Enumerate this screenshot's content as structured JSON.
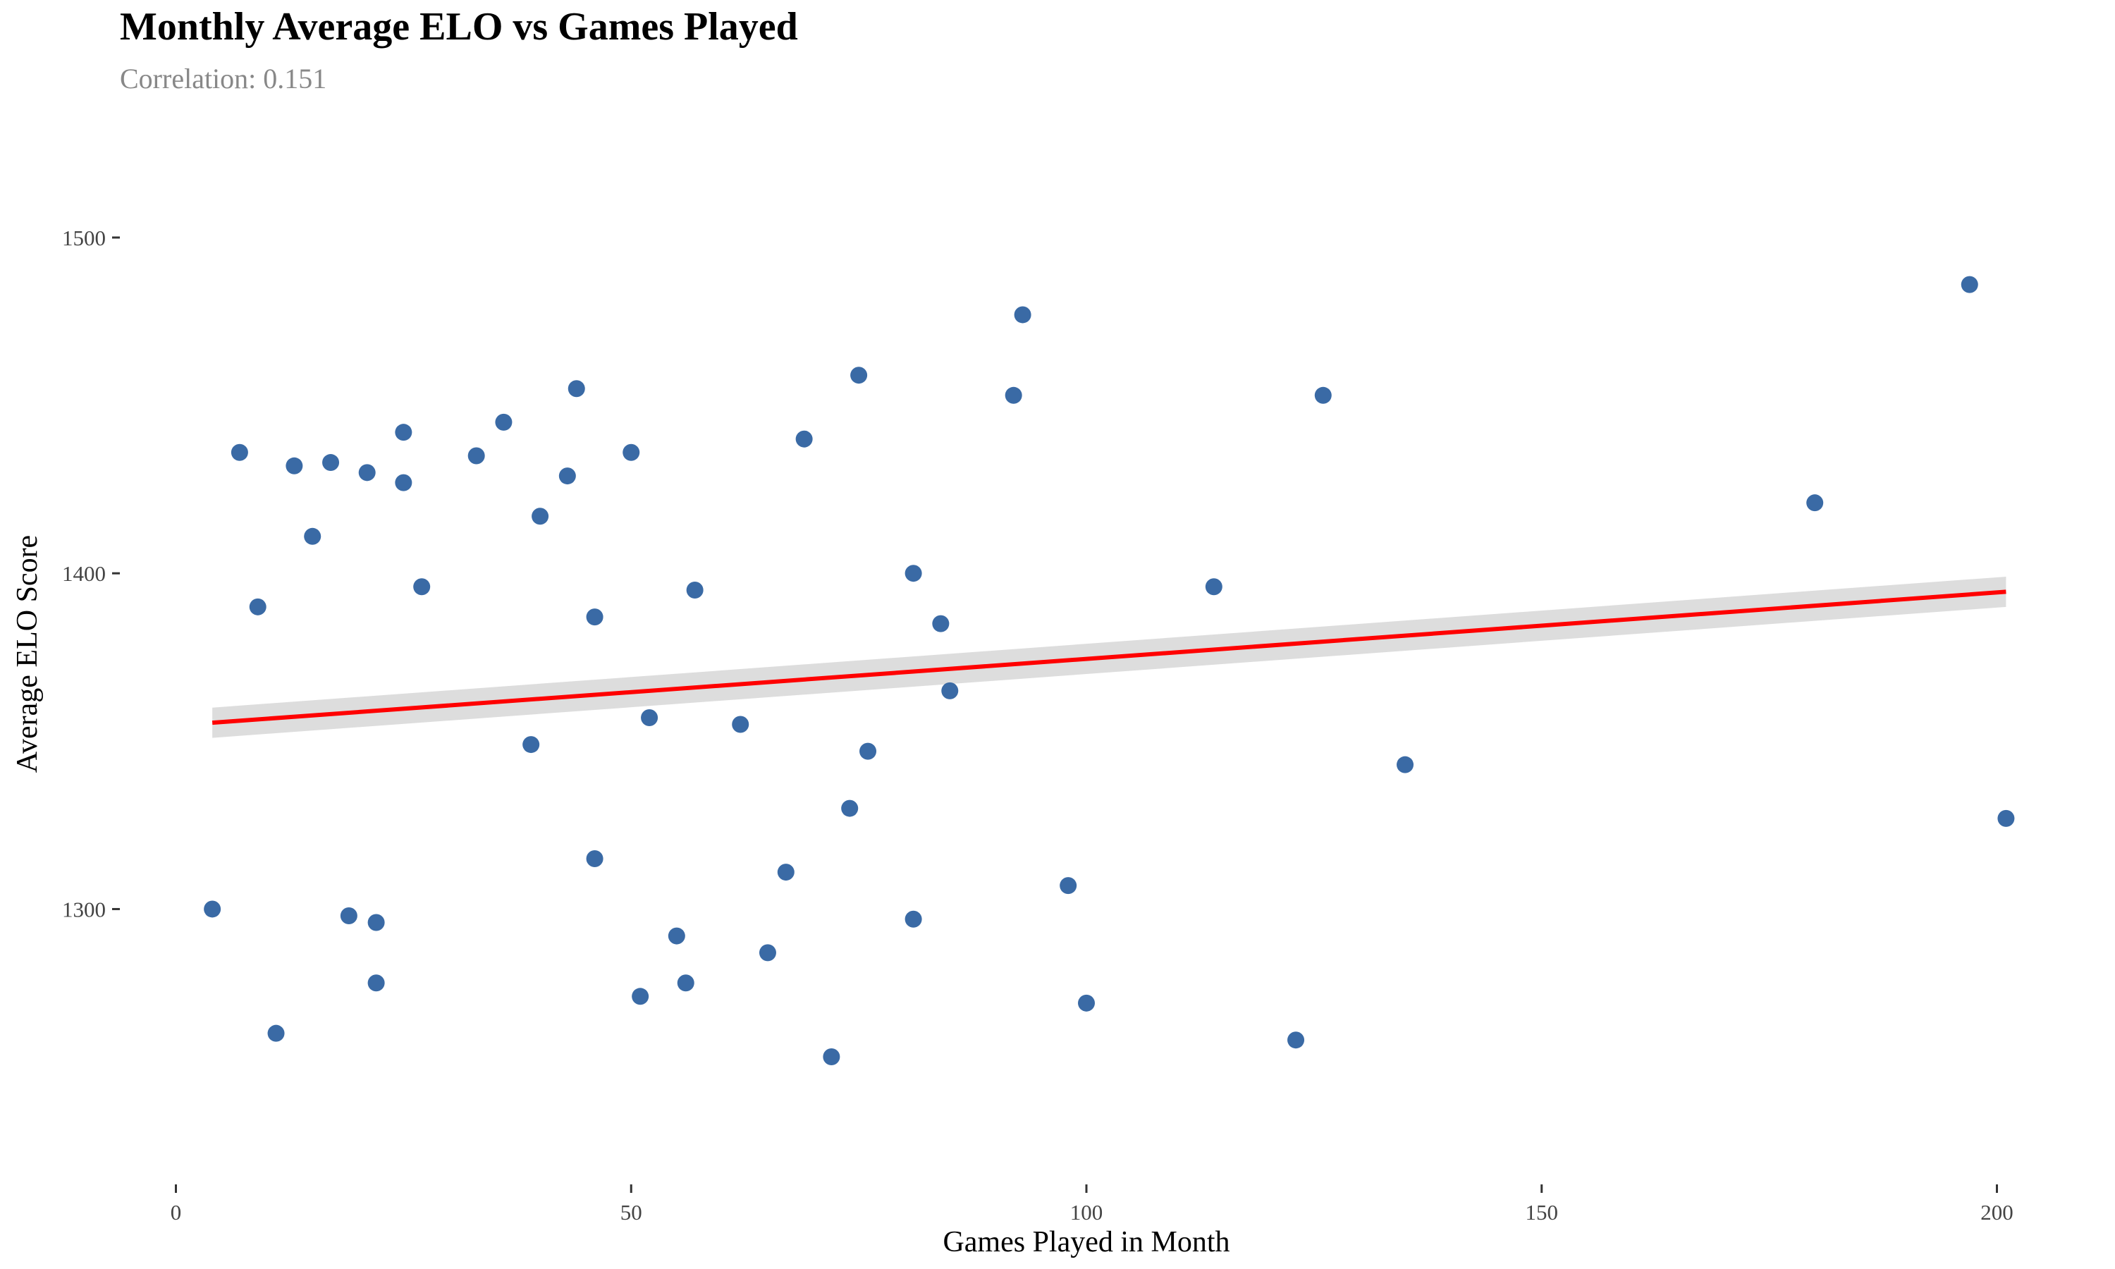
{
  "chart_data": {
    "type": "scatter",
    "title": "Monthly Average ELO vs Games Played",
    "subtitle": "Correlation: 0.151",
    "xlabel": "Games Played in Month",
    "ylabel": "Average ELO Score",
    "xlim": [
      -6,
      206
    ],
    "ylim": [
      1218,
      1534
    ],
    "xticks": [
      0,
      50,
      100,
      150,
      200
    ],
    "yticks": [
      1300,
      1400,
      1500
    ],
    "grid": false,
    "legend": "none",
    "colors": {
      "points": "#3a6aa5",
      "trend": "#ff0000",
      "band": "#d9d9d9",
      "subtitle": "#888888"
    },
    "points": [
      [
        4,
        1300
      ],
      [
        7,
        1436
      ],
      [
        9,
        1390
      ],
      [
        11,
        1263
      ],
      [
        13,
        1432
      ],
      [
        15,
        1411
      ],
      [
        17,
        1433
      ],
      [
        19,
        1298
      ],
      [
        21,
        1430
      ],
      [
        22,
        1296
      ],
      [
        22,
        1278
      ],
      [
        25,
        1442
      ],
      [
        25,
        1427
      ],
      [
        27,
        1396
      ],
      [
        33,
        1435
      ],
      [
        36,
        1445
      ],
      [
        39,
        1349
      ],
      [
        40,
        1417
      ],
      [
        43,
        1429
      ],
      [
        44,
        1455
      ],
      [
        46,
        1387
      ],
      [
        46,
        1315
      ],
      [
        50,
        1436
      ],
      [
        51,
        1274
      ],
      [
        52,
        1357
      ],
      [
        55,
        1292
      ],
      [
        56,
        1278
      ],
      [
        57,
        1395
      ],
      [
        62,
        1355
      ],
      [
        65,
        1287
      ],
      [
        67,
        1311
      ],
      [
        69,
        1440
      ],
      [
        72,
        1256
      ],
      [
        74,
        1330
      ],
      [
        75,
        1459
      ],
      [
        76,
        1347
      ],
      [
        81,
        1400
      ],
      [
        81,
        1297
      ],
      [
        84,
        1385
      ],
      [
        85,
        1365
      ],
      [
        92,
        1453
      ],
      [
        93,
        1477
      ],
      [
        98,
        1307
      ],
      [
        100,
        1272
      ],
      [
        114,
        1396
      ],
      [
        123,
        1261
      ],
      [
        126,
        1453
      ],
      [
        135,
        1343
      ],
      [
        180,
        1421
      ],
      [
        197,
        1486
      ],
      [
        201,
        1327
      ]
    ],
    "trend_line": {
      "x": [
        4,
        201
      ],
      "y": [
        1355.5,
        1394.5
      ]
    },
    "confidence_band": {
      "x": [
        4,
        201
      ],
      "upper": [
        1360,
        1399
      ],
      "lower": [
        1351,
        1390
      ]
    }
  }
}
